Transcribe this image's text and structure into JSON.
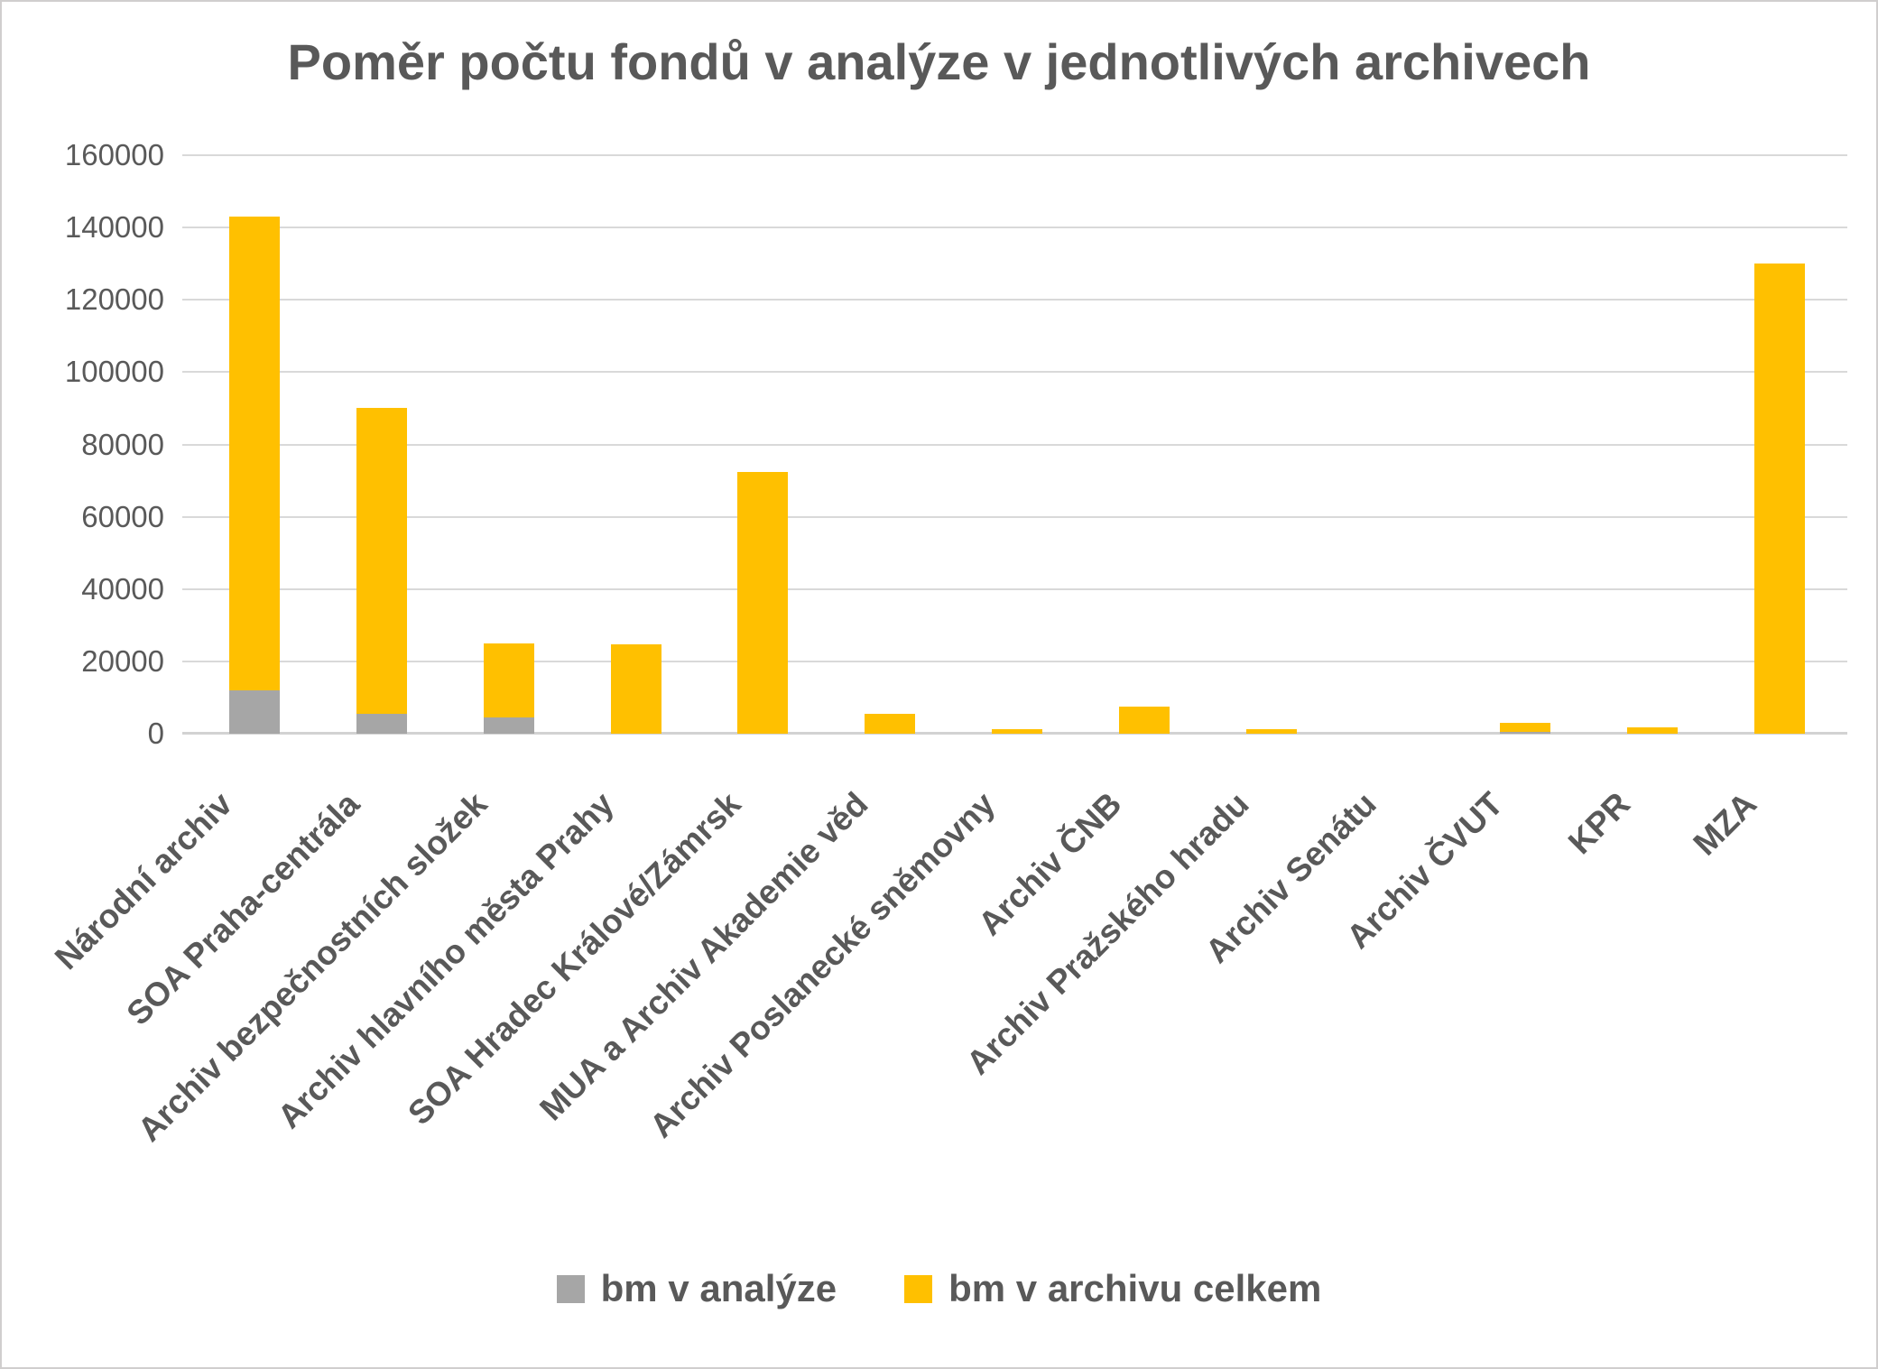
{
  "title": "Poměr počtu fondů v analýze v jednotlivých archivech",
  "colors": {
    "series_analyze": "#a6a6a6",
    "series_total": "#ffc000",
    "text": "#595959",
    "gridline": "#d9d9d9",
    "axis_line": "#d2d2d2",
    "frame_border": "#d0cece",
    "background": "#ffffff"
  },
  "legend": {
    "position": "bottom",
    "items": [
      {
        "label": "bm v analýze",
        "color": "#a6a6a6"
      },
      {
        "label": "bm v archivu celkem",
        "color": "#ffc000"
      }
    ]
  },
  "chart_data": {
    "type": "bar",
    "stacked": true,
    "title": "Poměr počtu fondů v analýze v jednotlivých archivech",
    "xlabel": "",
    "ylabel": "",
    "grid": true,
    "legend_position": "bottom",
    "ylim": [
      0,
      160000
    ],
    "ytick_interval": 20000,
    "yticks": [
      0,
      20000,
      40000,
      60000,
      80000,
      100000,
      120000,
      140000,
      160000
    ],
    "categories": [
      "Národní archiv",
      "SOA Praha-centrála",
      "Archiv bezpečnostních složek",
      "Archiv hlavního města Prahy",
      "SOA Hradec Králové/Zámrsk",
      "MUA a Archiv Akademie věd",
      "Archiv Poslanecké sněmovny",
      "Archiv ČNB",
      "Archiv Pražského hradu",
      "Archiv Senátu",
      "Archiv ČVUT",
      "KPR",
      "MZA"
    ],
    "series": [
      {
        "name": "bm v analýze",
        "color": "#a6a6a6",
        "values": [
          12000,
          5600,
          4600,
          0,
          0,
          0,
          0,
          0,
          0,
          0,
          400,
          0,
          0
        ]
      },
      {
        "name": "bm v archivu celkem",
        "color": "#ffc000",
        "values": [
          131000,
          84400,
          20400,
          24800,
          72500,
          5500,
          1200,
          7500,
          1300,
          0,
          2500,
          1800,
          130000
        ]
      }
    ],
    "stack_totals": [
      143000,
      90000,
      25000,
      24800,
      72500,
      5500,
      1200,
      7500,
      1300,
      0,
      2900,
      1800,
      130000
    ]
  }
}
